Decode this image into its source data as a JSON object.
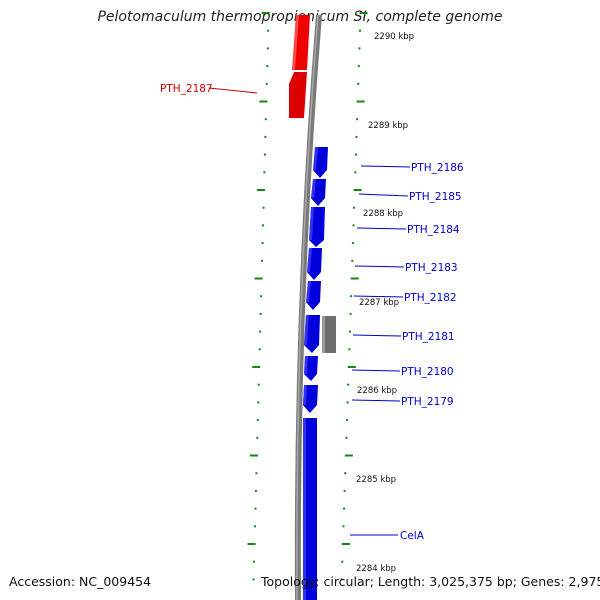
{
  "title": "Pelotomaculum thermopropionicum SI, complete genome",
  "footer": {
    "accession": "Accession: NC_009454",
    "topology": "Topology: circular; Length: 3,025,375 bp; Genes: 2,975"
  },
  "kbp_ticks": [
    {
      "label": "2290 kbp"
    },
    {
      "label": "2289 kbp"
    },
    {
      "label": "2288 kbp"
    },
    {
      "label": "2287 kbp"
    },
    {
      "label": "2286 kbp"
    },
    {
      "label": "2285 kbp"
    },
    {
      "label": "2284 kbp"
    }
  ],
  "genes": [
    {
      "name": "PTH_2187",
      "strand": "forward",
      "color": "#dd0000"
    },
    {
      "name": "PTH_2186",
      "strand": "reverse",
      "color": "#0000dd"
    },
    {
      "name": "PTH_2185",
      "strand": "reverse",
      "color": "#0000dd"
    },
    {
      "name": "PTH_2184",
      "strand": "reverse",
      "color": "#0000dd"
    },
    {
      "name": "PTH_2183",
      "strand": "reverse",
      "color": "#0000dd"
    },
    {
      "name": "PTH_2182",
      "strand": "reverse",
      "color": "#0000dd"
    },
    {
      "name": "PTH_2181",
      "strand": "reverse",
      "color": "#0000dd"
    },
    {
      "name": "PTH_2180",
      "strand": "reverse",
      "color": "#0000dd"
    },
    {
      "name": "PTH_2179",
      "strand": "reverse",
      "color": "#0000dd"
    },
    {
      "name": "CelA",
      "strand": "reverse",
      "color": "#0000dd"
    }
  ],
  "colors": {
    "forward_gene": "#dd0000",
    "reverse_gene": "#0000dd",
    "other_feature": "#6e6e6e",
    "backbone": "#808080",
    "tick": "#118811"
  }
}
